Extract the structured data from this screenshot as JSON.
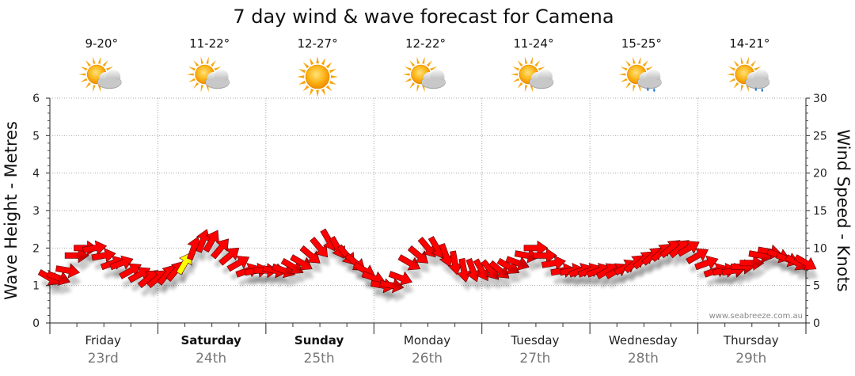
{
  "chart_data": {
    "type": "line",
    "title": "7 day wind & wave forecast for Camena",
    "ylabel_left": "Wave Height - Metres",
    "ylabel_right": "Wind Speed - Knots",
    "ylim_left": [
      0,
      6
    ],
    "ylim_right": [
      0,
      30
    ],
    "yticks_left": [
      "0",
      "1",
      "2",
      "3",
      "4",
      "5",
      "6"
    ],
    "yticks_right": [
      "0",
      "5",
      "10",
      "15",
      "20",
      "25",
      "30"
    ],
    "grid": true,
    "watermark": "www.seabreeze.com.au",
    "days": [
      {
        "name": "Friday",
        "date": "23rd",
        "bold": false,
        "temp": "9-20°",
        "icon": "partly-cloudy-icon"
      },
      {
        "name": "Saturday",
        "date": "24th",
        "bold": true,
        "temp": "11-22°",
        "icon": "partly-cloudy-icon"
      },
      {
        "name": "Sunday",
        "date": "25th",
        "bold": true,
        "temp": "12-27°",
        "icon": "sunny-icon"
      },
      {
        "name": "Monday",
        "date": "26th",
        "bold": false,
        "temp": "12-22°",
        "icon": "partly-cloudy-icon"
      },
      {
        "name": "Tuesday",
        "date": "27th",
        "bold": false,
        "temp": "11-24°",
        "icon": "partly-cloudy-icon"
      },
      {
        "name": "Wednesday",
        "date": "28th",
        "bold": false,
        "temp": "15-25°",
        "icon": "showers-icon"
      },
      {
        "name": "Thursday",
        "date": "29th",
        "bold": false,
        "temp": "14-21°",
        "icon": "showers-icon"
      }
    ],
    "series": [
      {
        "name": "Wind speed",
        "units": "knots",
        "color": "#ff0000",
        "highlight_color": "#ffff00",
        "x_hours": [
          0,
          2,
          4,
          6,
          8,
          10,
          12,
          14,
          16,
          18,
          20,
          22,
          24,
          26,
          28,
          30,
          32,
          34,
          36,
          38,
          40,
          42,
          44,
          46,
          48,
          50,
          52,
          54,
          56,
          58,
          60,
          62,
          64,
          66,
          68,
          70,
          72,
          74,
          76,
          78,
          80,
          82,
          84,
          86,
          88,
          90,
          92,
          94,
          96,
          98,
          100,
          102,
          104,
          106,
          108,
          110,
          112,
          114,
          116,
          118,
          120,
          122,
          124,
          126,
          128,
          130,
          132,
          134,
          136,
          138,
          140,
          142,
          144,
          146,
          148,
          150,
          152,
          154,
          156,
          158,
          160,
          162,
          164,
          166,
          168
        ],
        "values": [
          6,
          6,
          7,
          9,
          10,
          10,
          9,
          8,
          8,
          7,
          6.5,
          6,
          6,
          6.5,
          7,
          8,
          10,
          11,
          11,
          10,
          9,
          8,
          7,
          7,
          7,
          7,
          7,
          7.5,
          8,
          9,
          10,
          11,
          10,
          9,
          8,
          7,
          6,
          5,
          5,
          6,
          8,
          9,
          10,
          10,
          9,
          8,
          7,
          7,
          7,
          7,
          7,
          7.5,
          8,
          9,
          10,
          9,
          8,
          7,
          7,
          7,
          7,
          7,
          7,
          7,
          7.5,
          8,
          8.5,
          9,
          9.5,
          10,
          10,
          10,
          9,
          8,
          7,
          7,
          7,
          7.5,
          8,
          9,
          9.5,
          9,
          8.5,
          8,
          8
        ],
        "direction_deg": [
          300,
          290,
          280,
          270,
          270,
          260,
          260,
          250,
          250,
          240,
          240,
          230,
          230,
          220,
          220,
          210,
          200,
          200,
          210,
          220,
          230,
          240,
          250,
          260,
          270,
          280,
          290,
          300,
          300,
          310,
          320,
          330,
          330,
          320,
          310,
          300,
          290,
          280,
          280,
          290,
          300,
          310,
          320,
          330,
          340,
          350,
          350,
          340,
          330,
          320,
          310,
          300,
          290,
          280,
          270,
          270,
          260,
          260,
          260,
          250,
          250,
          250,
          240,
          240,
          240,
          230,
          230,
          230,
          230,
          230,
          230,
          240,
          240,
          250,
          250,
          260,
          260,
          270,
          270,
          280,
          280,
          290,
          290,
          300,
          300
        ],
        "highlight_index": 15
      }
    ]
  }
}
